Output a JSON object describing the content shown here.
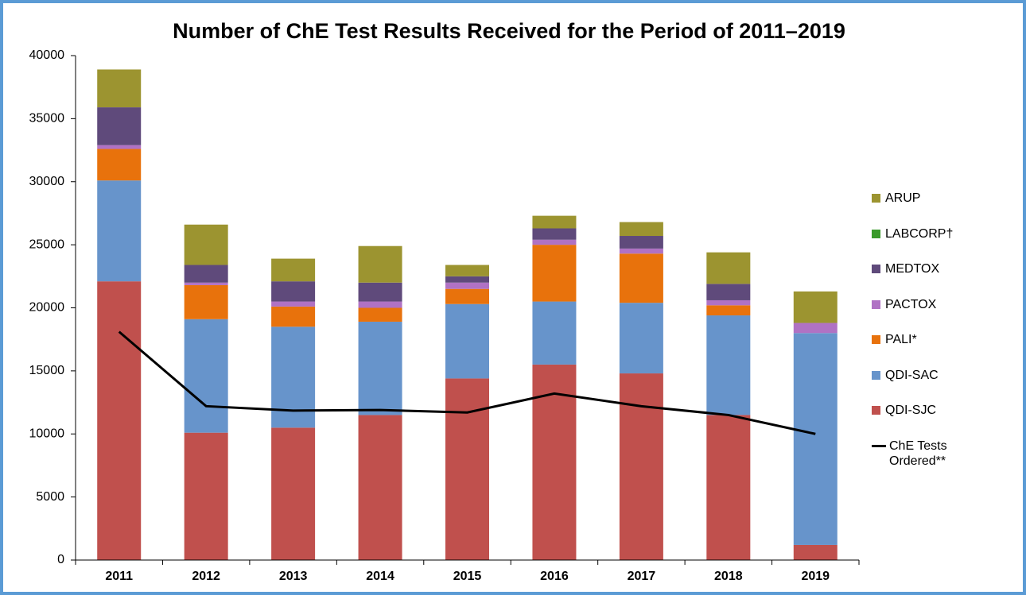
{
  "chart_data": {
    "type": "bar",
    "stacked": true,
    "title": "Number of ChE Test Results Received for the Period of 2011–2019",
    "categories": [
      "2011",
      "2012",
      "2013",
      "2014",
      "2015",
      "2016",
      "2017",
      "2018",
      "2019"
    ],
    "ylim": [
      0,
      40000
    ],
    "yticks": [
      0,
      5000,
      10000,
      15000,
      20000,
      25000,
      30000,
      35000,
      40000
    ],
    "grid": false,
    "legend": "right",
    "series": [
      {
        "name": "QDI-SJC",
        "color": "#c0504d",
        "values": [
          22100,
          10100,
          10500,
          11500,
          14400,
          15500,
          14800,
          11500,
          1200
        ]
      },
      {
        "name": "QDI-SAC",
        "color": "#6794cb",
        "values": [
          8000,
          9000,
          8000,
          7400,
          5900,
          5000,
          5600,
          7900,
          16800
        ]
      },
      {
        "name": "PALI*",
        "color": "#e8720c",
        "values": [
          2500,
          2700,
          1600,
          1100,
          1200,
          4500,
          3900,
          800,
          0
        ]
      },
      {
        "name": "PACTOX",
        "color": "#b072c4",
        "values": [
          300,
          200,
          400,
          500,
          500,
          400,
          400,
          400,
          800
        ]
      },
      {
        "name": "MEDTOX",
        "color": "#5f4a7b",
        "values": [
          3000,
          1400,
          1600,
          1500,
          500,
          900,
          1000,
          1300,
          0
        ]
      },
      {
        "name": "LABCORP†",
        "color": "#3a9a2a",
        "values": [
          0,
          0,
          0,
          0,
          0,
          0,
          0,
          0,
          0
        ]
      },
      {
        "name": "ARUP",
        "color": "#9c9430",
        "values": [
          3000,
          3200,
          1800,
          2900,
          900,
          1000,
          1100,
          2500,
          2500
        ]
      },
      {
        "name": "ChE Tests Ordered**",
        "type": "line",
        "color": "#000000",
        "values": [
          18100,
          12200,
          11850,
          11900,
          11700,
          13200,
          12200,
          11500,
          10000
        ]
      }
    ]
  }
}
